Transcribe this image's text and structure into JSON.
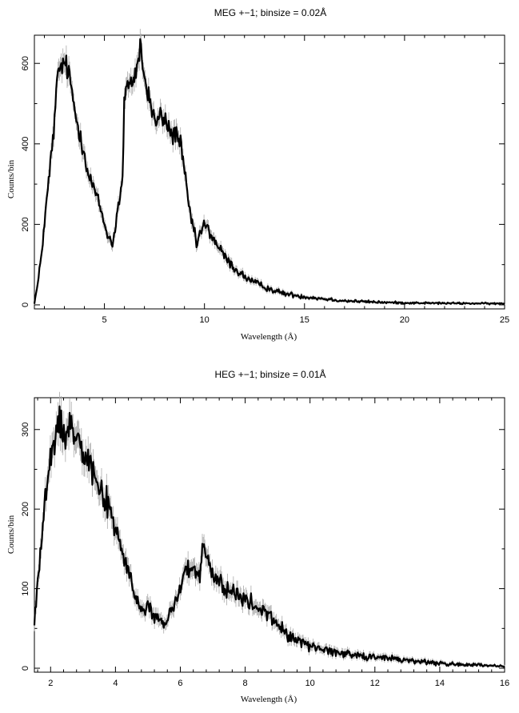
{
  "chart_data": [
    {
      "type": "line",
      "title": "MEG +−1; binsize = 0.02Å",
      "xlabel": "Wavelength (Å)",
      "ylabel": "Counts/bin",
      "xlim": [
        1.5,
        25
      ],
      "ylim": [
        -10,
        670
      ],
      "xticks": [
        5,
        10,
        15,
        20,
        25
      ],
      "yticks": [
        0,
        200,
        400,
        600
      ],
      "series": [
        {
          "x": [
            1.5,
            1.7,
            1.9,
            2.1,
            2.3,
            2.5,
            2.6,
            2.7,
            2.8,
            3.0,
            3.2,
            3.4,
            3.6,
            3.8,
            4.0,
            4.2,
            4.4,
            4.6,
            4.8,
            5.0,
            5.2,
            5.4,
            5.5,
            5.7,
            5.9,
            6.0,
            6.1,
            6.2,
            6.4,
            6.6,
            6.8,
            6.9,
            7.0,
            7.2,
            7.4,
            7.6,
            7.8,
            8.0,
            8.2,
            8.4,
            8.6,
            8.8,
            9.0,
            9.2,
            9.4,
            9.6,
            9.8,
            10.0,
            10.2,
            10.5,
            11.0,
            11.5,
            12.0,
            12.5,
            13.0,
            13.5,
            14.0,
            15.0,
            16.0,
            17.0,
            18.0,
            19.0,
            20.0,
            22.0,
            25.0
          ],
          "y": [
            5,
            60,
            150,
            250,
            350,
            450,
            530,
            580,
            590,
            600,
            580,
            520,
            460,
            420,
            380,
            320,
            300,
            270,
            240,
            200,
            170,
            150,
            180,
            250,
            300,
            520,
            540,
            530,
            560,
            580,
            650,
            600,
            560,
            520,
            480,
            450,
            470,
            460,
            440,
            420,
            430,
            400,
            330,
            250,
            200,
            150,
            180,
            200,
            185,
            160,
            120,
            90,
            70,
            55,
            45,
            35,
            28,
            20,
            15,
            10,
            8,
            6,
            5,
            4,
            3
          ]
        }
      ]
    },
    {
      "type": "line",
      "title": "HEG +−1; binsize = 0.01Å",
      "xlabel": "Wavelength (Å)",
      "ylabel": "Counts/bin",
      "xlim": [
        1.5,
        16
      ],
      "ylim": [
        -5,
        340
      ],
      "xticks": [
        2,
        4,
        6,
        8,
        10,
        12,
        14,
        16
      ],
      "yticks": [
        0,
        100,
        200,
        300
      ],
      "series": [
        {
          "x": [
            1.5,
            1.6,
            1.7,
            1.8,
            1.9,
            2.0,
            2.1,
            2.2,
            2.3,
            2.4,
            2.5,
            2.6,
            2.7,
            2.8,
            2.9,
            3.0,
            3.2,
            3.4,
            3.6,
            3.8,
            4.0,
            4.2,
            4.4,
            4.6,
            4.8,
            5.0,
            5.2,
            5.4,
            5.6,
            5.8,
            6.0,
            6.2,
            6.4,
            6.6,
            6.7,
            6.8,
            7.0,
            7.2,
            7.4,
            7.6,
            7.8,
            8.0,
            8.2,
            8.4,
            8.6,
            8.8,
            9.0,
            9.2,
            9.4,
            9.6,
            9.8,
            10.0,
            10.4,
            10.8,
            11.2,
            11.6,
            12.0,
            12.5,
            13.0,
            13.5,
            14.0,
            14.5,
            15.0,
            15.5,
            16.0
          ],
          "y": [
            55,
            110,
            150,
            200,
            230,
            260,
            280,
            300,
            310,
            300,
            295,
            305,
            300,
            295,
            290,
            280,
            260,
            240,
            220,
            200,
            175,
            150,
            120,
            90,
            70,
            80,
            65,
            55,
            60,
            80,
            100,
            130,
            120,
            110,
            160,
            140,
            115,
            110,
            100,
            95,
            90,
            85,
            80,
            75,
            70,
            65,
            55,
            45,
            40,
            36,
            32,
            28,
            24,
            20,
            18,
            16,
            14,
            12,
            10,
            8,
            6,
            5,
            4,
            3,
            2
          ]
        }
      ]
    }
  ]
}
